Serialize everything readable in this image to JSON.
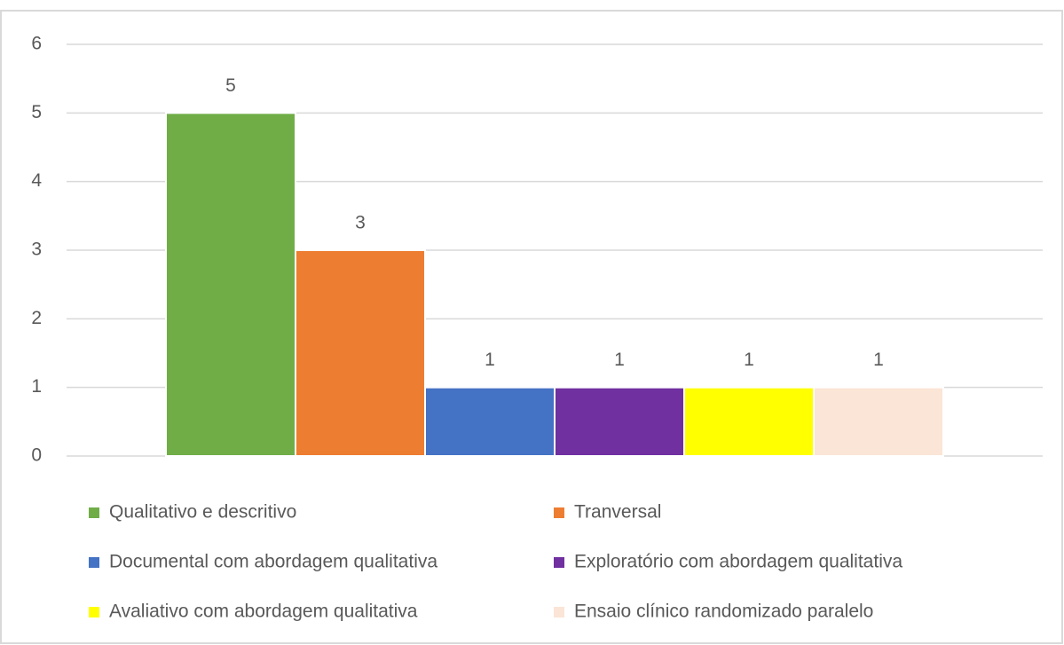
{
  "chart_data": {
    "type": "bar",
    "categories": [
      null
    ],
    "series": [
      {
        "name": "Qualitativo e descritivo",
        "color": "#70ad47",
        "values": [
          5
        ]
      },
      {
        "name": "Tranversal",
        "color": "#ed7d31",
        "values": [
          3
        ]
      },
      {
        "name": "Documental com abordagem qualitativa",
        "color": "#4472c4",
        "values": [
          1
        ]
      },
      {
        "name": "Exploratório com abordagem qualitativa",
        "color": "#7030a0",
        "values": [
          1
        ]
      },
      {
        "name": "Avaliativo com abordagem qualitativa",
        "color": "#ffff00",
        "values": [
          1
        ]
      },
      {
        "name": "Ensaio clínico randomizado paralelo",
        "color": "#fbe5d6",
        "values": [
          1
        ]
      }
    ],
    "ylim": [
      0,
      6
    ],
    "yticks": [
      0,
      1,
      2,
      3,
      4,
      5,
      6
    ],
    "grid": true,
    "legend": "bottom"
  }
}
